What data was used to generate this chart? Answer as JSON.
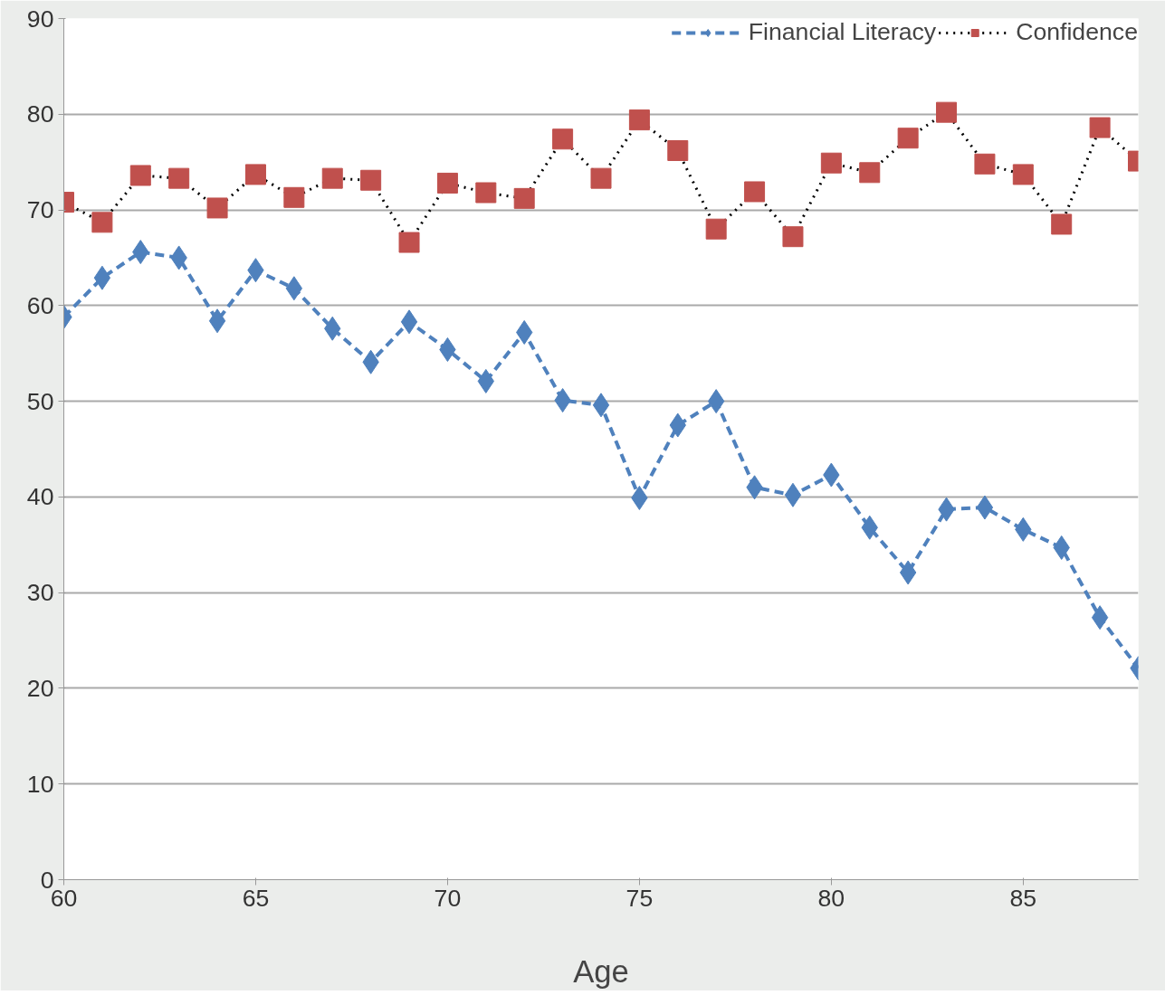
{
  "chart_data": {
    "type": "line",
    "xlabel": "Age",
    "x": [
      60,
      61,
      62,
      63,
      64,
      65,
      66,
      67,
      68,
      69,
      70,
      71,
      72,
      73,
      74,
      75,
      76,
      77,
      78,
      79,
      80,
      81,
      82,
      83,
      84,
      85,
      86,
      87,
      88
    ],
    "series": [
      {
        "name": "Financial Literacy",
        "color": "#4f81bd",
        "marker": "diamond",
        "line_style": "dashed",
        "values": [
          58.8,
          62.9,
          65.6,
          65.0,
          58.4,
          63.7,
          61.8,
          57.6,
          54.1,
          58.3,
          55.4,
          52.1,
          57.2,
          50.1,
          49.6,
          39.9,
          47.5,
          50.0,
          41.0,
          40.2,
          42.3,
          36.8,
          32.1,
          38.7,
          38.9,
          36.6,
          34.7,
          27.4,
          22.1
        ]
      },
      {
        "name": "Confidence",
        "color": "#c0504d",
        "marker": "square",
        "line_style": "dotted",
        "values": [
          70.8,
          68.7,
          73.6,
          73.3,
          70.2,
          73.7,
          71.3,
          73.3,
          73.1,
          66.6,
          72.8,
          71.8,
          71.2,
          77.4,
          73.3,
          79.4,
          76.2,
          68.0,
          71.9,
          67.2,
          74.9,
          73.9,
          77.5,
          80.2,
          74.8,
          73.7,
          68.5,
          78.6,
          75.1
        ]
      }
    ],
    "xlim": [
      60,
      88
    ],
    "xticks": [
      60,
      65,
      70,
      75,
      80,
      85
    ],
    "ylim": [
      0,
      90
    ],
    "yticks": [
      0,
      10,
      20,
      30,
      40,
      50,
      60,
      70,
      80,
      90
    ],
    "grid": "y",
    "legend": "top right"
  }
}
